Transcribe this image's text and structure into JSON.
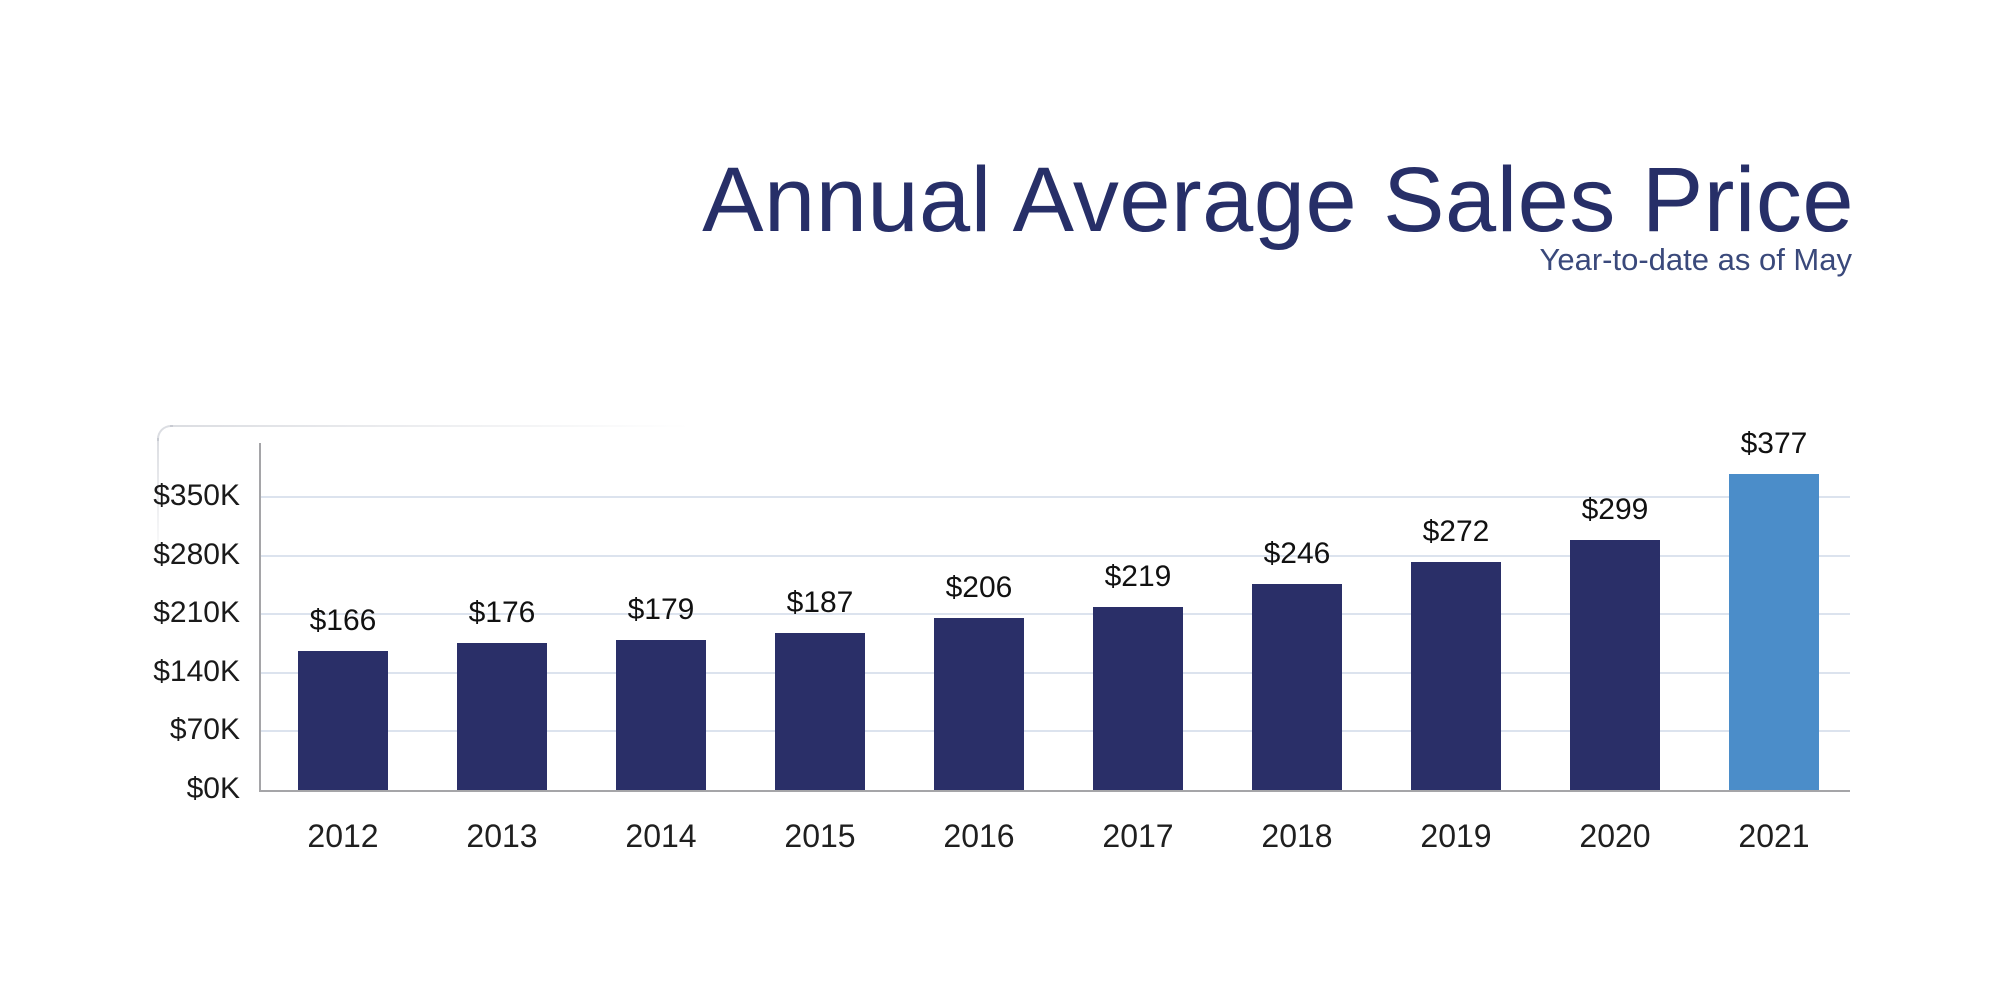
{
  "title": "Annual Average Sales Price",
  "subtitle": "Year-to-date as of May",
  "colors": {
    "title_text": "#272f68",
    "subtitle_text": "#3a497b",
    "bar_default": "#2a2f68",
    "bar_highlight": "#4b8dc9",
    "gridline": "#dce3ee",
    "axis_line": "#a5a5a8",
    "tick_text": "#1a1a1a",
    "value_text": "#111111",
    "year_text": "#1f1f1f"
  },
  "chart_data": {
    "type": "bar",
    "title": "Annual Average Sales Price",
    "subtitle": "Year-to-date as of May",
    "categories": [
      "2012",
      "2013",
      "2014",
      "2015",
      "2016",
      "2017",
      "2018",
      "2019",
      "2020",
      "2021"
    ],
    "values": [
      166,
      176,
      179,
      187,
      206,
      219,
      246,
      272,
      299,
      377
    ],
    "bar_labels": [
      "$166",
      "$176",
      "$179",
      "$187",
      "$206",
      "$219",
      "$246",
      "$272",
      "$299",
      "$377"
    ],
    "value_unit": "thousand USD",
    "highlight_category": "2021",
    "xlabel": "",
    "ylabel": "",
    "ylim": [
      0,
      420
    ],
    "yticks": [
      {
        "value": 0,
        "label": "$0K"
      },
      {
        "value": 70,
        "label": "$70K"
      },
      {
        "value": 140,
        "label": "$140K"
      },
      {
        "value": 210,
        "label": "$210K"
      },
      {
        "value": 280,
        "label": "$280K"
      },
      {
        "value": 350,
        "label": "$350K"
      }
    ],
    "grid": "horizontal",
    "legend": false
  }
}
